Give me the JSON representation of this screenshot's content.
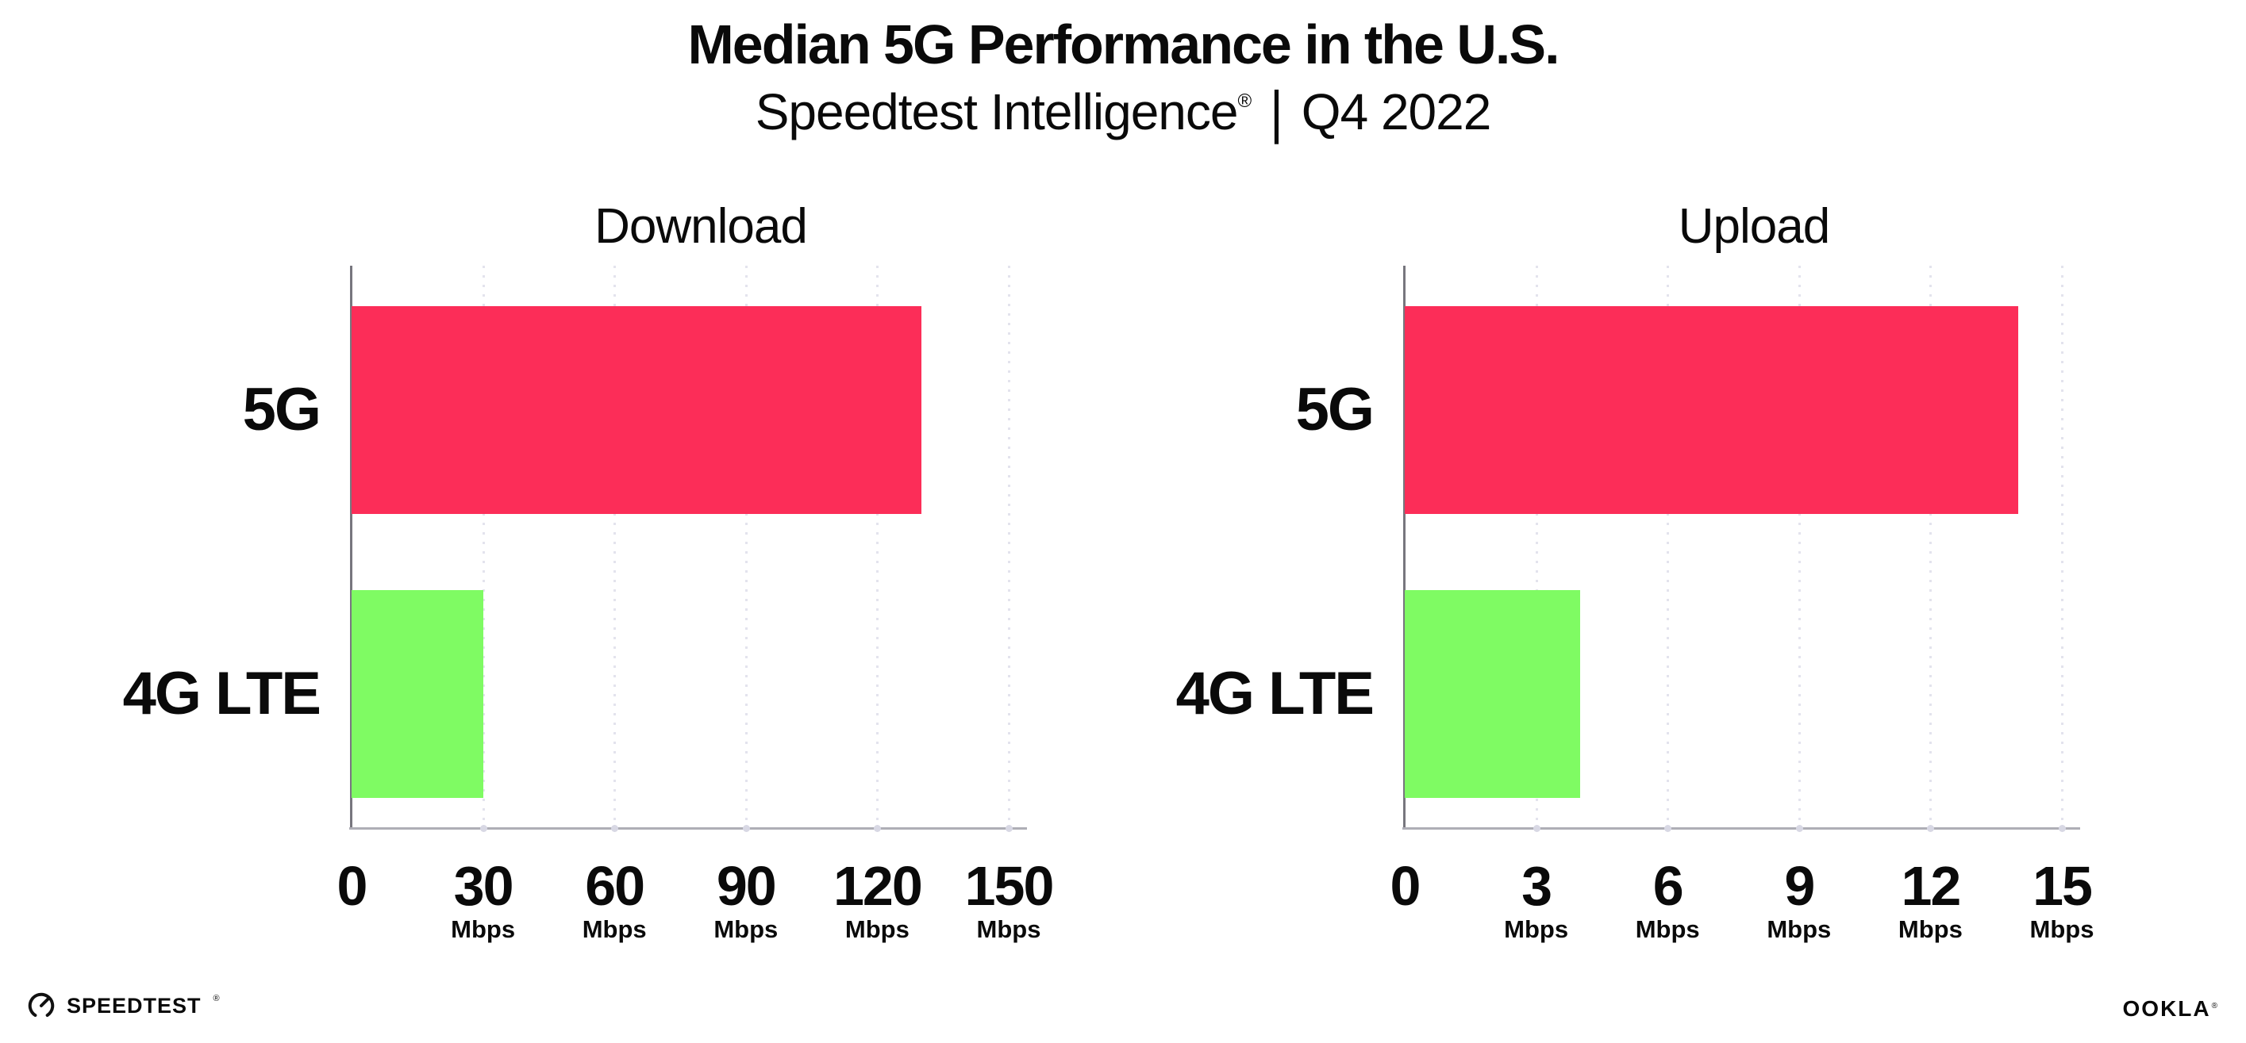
{
  "header": {
    "title": "Median 5G Performance in the U.S.",
    "subtitle_brand": "Speedtest Intelligence",
    "registered_mark": "®",
    "subtitle_separator": "|",
    "subtitle_period": "Q4 2022"
  },
  "colors": {
    "bar_5g": "#FC2D58",
    "bar_4g_lte": "#7FFB63",
    "gridline": "#E3E3ED",
    "axis_baseline": "#AEAEB6",
    "axis_vertical": "#77767E",
    "text": "#0A0A0A",
    "background": "#FFFFFF"
  },
  "chart_data": [
    {
      "type": "bar",
      "orientation": "horizontal",
      "title": "Download",
      "categories": [
        "5G",
        "4G LTE"
      ],
      "values": [
        130,
        30
      ],
      "unit": "Mbps",
      "xlim": [
        0,
        150
      ],
      "xticks": [
        0,
        30,
        60,
        90,
        120,
        150
      ],
      "tick_unit_label": "Mbps",
      "bar_colors": [
        "#FC2D58",
        "#7FFB63"
      ],
      "grid": "dotted-vertical",
      "legend": "none"
    },
    {
      "type": "bar",
      "orientation": "horizontal",
      "title": "Upload",
      "categories": [
        "5G",
        "4G LTE"
      ],
      "values": [
        14,
        4
      ],
      "unit": "Mbps",
      "xlim": [
        0,
        15
      ],
      "xticks": [
        0,
        3,
        6,
        9,
        12,
        15
      ],
      "tick_unit_label": "Mbps",
      "bar_colors": [
        "#FC2D58",
        "#7FFB63"
      ],
      "grid": "dotted-vertical",
      "legend": "none"
    }
  ],
  "footer": {
    "speedtest_logo_text": "SPEEDTEST",
    "speedtest_logo_mark": "®",
    "ookla_logo_text": "OOKLA",
    "ookla_logo_mark": "®"
  }
}
